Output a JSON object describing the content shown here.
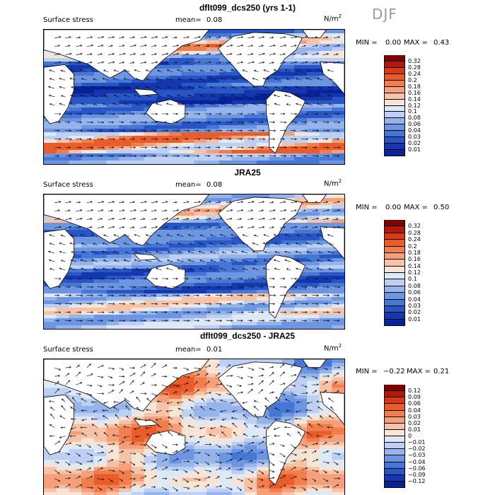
{
  "season": "DJF",
  "panels": [
    {
      "title": "dflt099_dcs250 (yrs 1-1)",
      "field_label": "Surface stress",
      "mean_label": "mean=",
      "mean_value": "0.08",
      "units": "N/m",
      "units_exp": "2",
      "min_label": "MIN =",
      "min_value": "0.00",
      "max_label": "MAX =",
      "max_value": "0.43",
      "scale": "sequential",
      "colorbar_labels": [
        "0.32",
        "0.28",
        "0.24",
        "0.2",
        "0.18",
        "0.16",
        "0.14",
        "0.12",
        "0.1",
        "0.08",
        "0.06",
        "0.04",
        "0.03",
        "0.02",
        "0.01"
      ]
    },
    {
      "title": "JRA25",
      "field_label": "Surface stress",
      "mean_label": "mean=",
      "mean_value": "0.08",
      "units": "N/m",
      "units_exp": "2",
      "min_label": "MIN =",
      "min_value": "0.00",
      "max_label": "MAX =",
      "max_value": "0.50",
      "scale": "sequential",
      "colorbar_labels": [
        "0.32",
        "0.28",
        "0.24",
        "0.2",
        "0.18",
        "0.16",
        "0.14",
        "0.12",
        "0.1",
        "0.08",
        "0.06",
        "0.04",
        "0.03",
        "0.02",
        "0.01"
      ]
    },
    {
      "title": "dflt099_dcs250 - JRA25",
      "field_label": "Surface stress",
      "mean_label": "mean=",
      "mean_value": "0.01",
      "units": "N/m",
      "units_exp": "2",
      "min_label": "MIN =",
      "min_value": "−0.22",
      "max_label": "MAX =",
      "max_value": "0.21",
      "scale": "diverging",
      "colorbar_labels": [
        "0.12",
        "0.09",
        "0.06",
        "0.04",
        "0.03",
        "0.02",
        "0.01",
        "0",
        "−0.01",
        "−0.02",
        "−0.03",
        "−0.04",
        "−0.06",
        "−0.09",
        "−0.12"
      ]
    }
  ],
  "colors": {
    "sequential": [
      "#7f0000",
      "#b2180c",
      "#d83a16",
      "#ea5c2a",
      "#f27e4c",
      "#f5a07a",
      "#f6c3a6",
      "#f7e4d4",
      "#dde8f8",
      "#bdd0f3",
      "#95b4ec",
      "#6c95e2",
      "#4777d6",
      "#2956c6",
      "#1437b0",
      "#08229a"
    ],
    "diverging": [
      "#7f0000",
      "#b2180c",
      "#d83a16",
      "#ea5c2a",
      "#f27e4c",
      "#f5a07a",
      "#f6c3a6",
      "#f7e4d4",
      "#dde8f8",
      "#bdd0f3",
      "#95b4ec",
      "#6c95e2",
      "#4777d6",
      "#2956c6",
      "#1437b0",
      "#08229a"
    ],
    "land": "#ffffff",
    "coast": "#000000"
  },
  "chart_data": [
    {
      "type": "heatmap",
      "title": "dflt099_dcs250 (yrs 1-1)",
      "variable": "Surface stress",
      "units": "N/m2",
      "season": "DJF",
      "mean": 0.08,
      "min": 0.0,
      "max": 0.43,
      "levels": [
        0.01,
        0.02,
        0.03,
        0.04,
        0.06,
        0.08,
        0.1,
        0.12,
        0.14,
        0.16,
        0.18,
        0.2,
        0.24,
        0.28,
        0.32
      ]
    },
    {
      "type": "heatmap",
      "title": "JRA25",
      "variable": "Surface stress",
      "units": "N/m2",
      "season": "DJF",
      "mean": 0.08,
      "min": 0.0,
      "max": 0.5,
      "levels": [
        0.01,
        0.02,
        0.03,
        0.04,
        0.06,
        0.08,
        0.1,
        0.12,
        0.14,
        0.16,
        0.18,
        0.2,
        0.24,
        0.28,
        0.32
      ]
    },
    {
      "type": "heatmap",
      "title": "dflt099_dcs250 - JRA25",
      "variable": "Surface stress",
      "units": "N/m2",
      "season": "DJF",
      "mean": 0.01,
      "min": -0.22,
      "max": 0.21,
      "levels": [
        -0.12,
        -0.09,
        -0.06,
        -0.04,
        -0.03,
        -0.02,
        -0.01,
        0,
        0.01,
        0.02,
        0.03,
        0.04,
        0.06,
        0.09,
        0.12
      ]
    }
  ]
}
